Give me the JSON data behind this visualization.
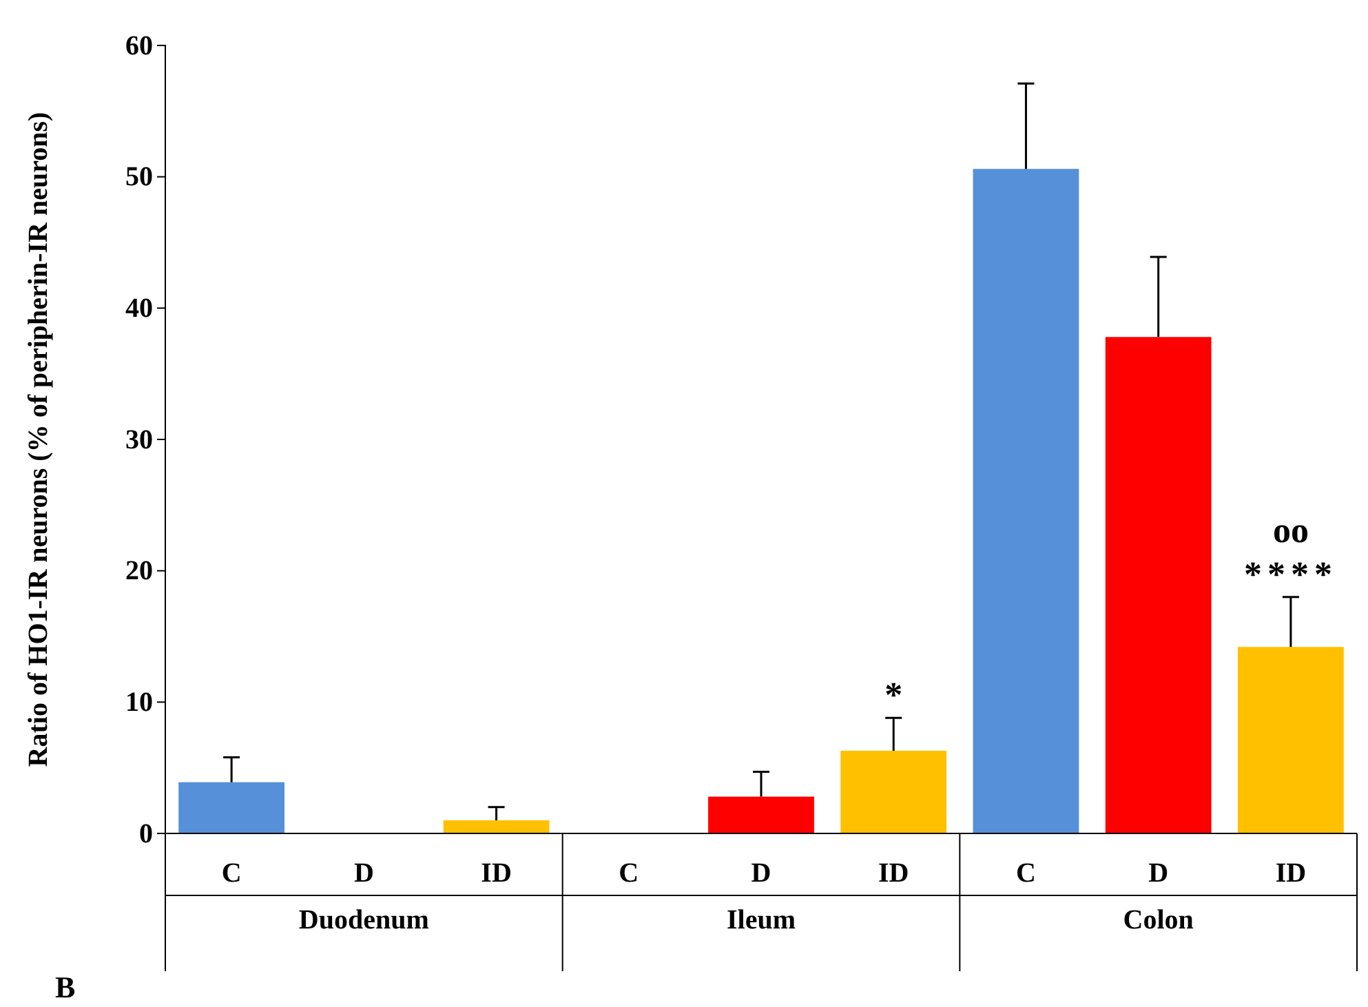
{
  "chart_data": {
    "type": "bar",
    "ylabel": "Ratio of HO1-IR neurons (% of peripherin-IR neurons)",
    "categories": [
      "C",
      "D",
      "ID",
      "C",
      "D",
      "ID",
      "C",
      "D",
      "ID"
    ],
    "values": [
      3.9,
      0,
      1.0,
      0,
      2.8,
      6.3,
      50.6,
      37.8,
      14.2
    ],
    "errors": [
      [
        3.9,
        5.8
      ],
      null,
      [
        1.0,
        2.0
      ],
      null,
      [
        2.8,
        4.7
      ],
      [
        6.3,
        8.8
      ],
      [
        50.6,
        57.1
      ],
      [
        37.8,
        43.9
      ],
      [
        14.2,
        18.0
      ]
    ],
    "colors": [
      "#5590d9",
      "#ff0000",
      "#ffc000",
      "#5590d9",
      "#ff0000",
      "#ffc000",
      "#5590d9",
      "#ff0000",
      "#ffc000"
    ],
    "ylim": [
      0,
      60
    ],
    "yticks": [
      0,
      10,
      20,
      30,
      40,
      50,
      60
    ],
    "grid": false,
    "annotations": [
      "Duodenum",
      "Ileum",
      "Colon",
      "*",
      "oo",
      "****",
      "B"
    ]
  }
}
